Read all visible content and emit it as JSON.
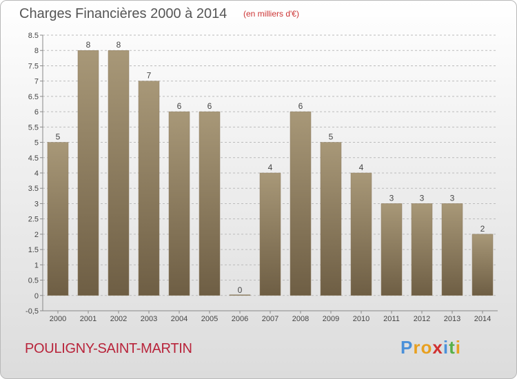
{
  "header": {
    "title": "Charges Financières 2000 à 2014",
    "subtitle": "(en milliers d'€)"
  },
  "footer": {
    "commune": "POULIGNY-SAINT-MARTIN",
    "logo": "Proxiti"
  },
  "colors": {
    "bar_top": "#a89878",
    "bar_bottom": "#6e5e44",
    "grid": "#bbbbbb"
  },
  "chart_data": {
    "type": "bar",
    "title": "Charges Financières 2000 à 2014",
    "subtitle": "(en milliers d'€)",
    "categories": [
      "2000",
      "2001",
      "2002",
      "2003",
      "2004",
      "2005",
      "2006",
      "2007",
      "2008",
      "2009",
      "2010",
      "2011",
      "2012",
      "2013",
      "2014"
    ],
    "values": [
      5,
      8,
      8,
      7,
      6,
      6,
      0,
      4,
      6,
      5,
      4,
      3,
      3,
      3,
      2
    ],
    "data_labels": [
      "5",
      "8",
      "8",
      "7",
      "6",
      "6",
      "0",
      "4",
      "6",
      "5",
      "4",
      "3",
      "3",
      "3",
      "2"
    ],
    "ylim": [
      -0.5,
      8.5
    ],
    "yticks": [
      -0.5,
      0,
      0.5,
      1,
      1.5,
      2,
      2.5,
      3,
      3.5,
      4,
      4.5,
      5,
      5.5,
      6,
      6.5,
      7,
      7.5,
      8,
      8.5
    ],
    "ytick_labels": [
      "-0,5",
      "0",
      "0.5",
      "1",
      "1.5",
      "2",
      "2.5",
      "3",
      "3.5",
      "4",
      "4.5",
      "5",
      "5.5",
      "6",
      "6.5",
      "7",
      "7.5",
      "8",
      "8.5"
    ],
    "grid": true
  }
}
